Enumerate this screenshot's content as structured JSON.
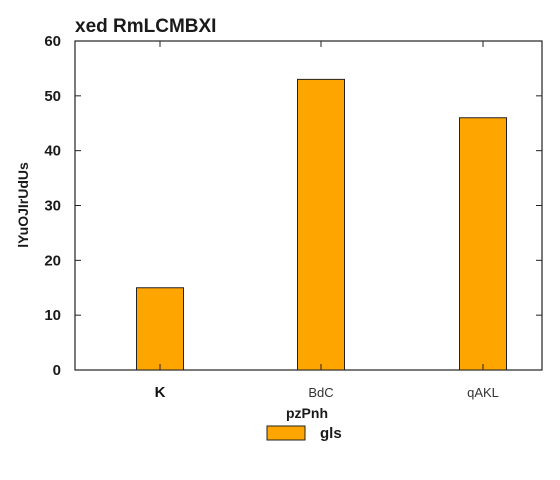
{
  "chart_data": {
    "type": "bar",
    "title": "xed RmLCMBXI",
    "xlabel": "pzPnh",
    "ylabel": "lYuOJIrUdUs",
    "categories": [
      "K",
      "BdC",
      "qAKL"
    ],
    "series": [
      {
        "name": "gls",
        "values": [
          15,
          53,
          46
        ],
        "color": "#FFA500"
      }
    ],
    "ylim": [
      0,
      60
    ],
    "yticks": [
      0,
      10,
      20,
      30,
      40,
      50,
      60
    ],
    "grid": false,
    "legend_position": "bottom-center"
  }
}
